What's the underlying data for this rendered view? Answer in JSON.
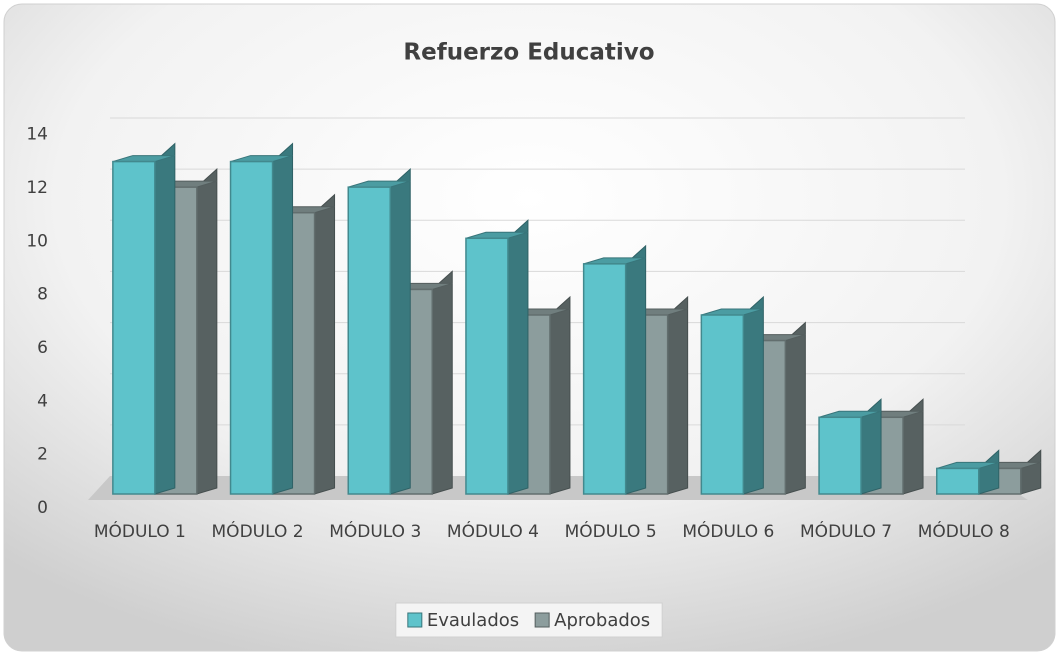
{
  "chart_data": {
    "type": "bar3d",
    "title": "Refuerzo Educativo",
    "categories": [
      "MÓDULO 1",
      "MÓDULO 2",
      "MÓDULO 3",
      "MÓDULO 4",
      "MÓDULO 5",
      "MÓDULO 6",
      "MÓDULO 7",
      "MÓDULO 8"
    ],
    "series": [
      {
        "name": "Evaulados",
        "color": "#5ec3cb",
        "values": [
          13,
          13,
          12,
          10,
          9,
          7,
          3,
          1
        ]
      },
      {
        "name": "Aprobados",
        "color": "#8c9d9d",
        "values": [
          12,
          11,
          8,
          7,
          7,
          6,
          3,
          1
        ]
      }
    ],
    "ylim": [
      0,
      14
    ],
    "yticks": [
      0,
      2,
      4,
      6,
      8,
      10,
      12,
      14
    ],
    "grid": true,
    "legend": "bottom"
  }
}
